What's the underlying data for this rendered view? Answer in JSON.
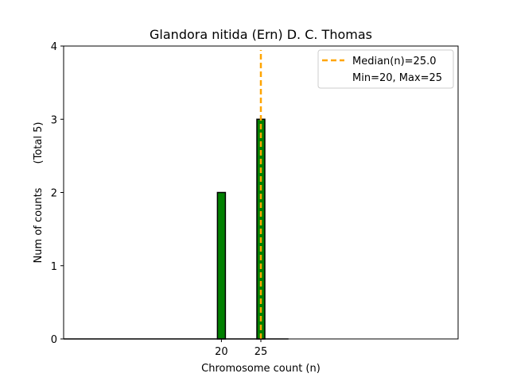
{
  "chart_data": {
    "type": "bar",
    "title": "Glandora nitida (Ern) D. C. Thomas",
    "xlabel": "Chromosome count (n)",
    "ylabel": "Num of counts",
    "ylabel_note": "(Total 5)",
    "xlim": [
      0,
      50
    ],
    "ylim": [
      0,
      4
    ],
    "xticks": [
      20,
      25
    ],
    "yticks": [
      0,
      1,
      2,
      3,
      4
    ],
    "bars": [
      {
        "x": 20,
        "value": 2
      },
      {
        "x": 25,
        "value": 3
      }
    ],
    "bar_color": "#008000",
    "bar_edge_color": "#000000",
    "median": {
      "value": 25.0,
      "color": "#FFA500",
      "label": "Median(n)=25.0"
    },
    "min": 20,
    "max": 25,
    "legend": {
      "placement": "top-right",
      "entries": [
        "Median(n)=25.0",
        "Min=20, Max=25"
      ]
    },
    "grid": false
  }
}
